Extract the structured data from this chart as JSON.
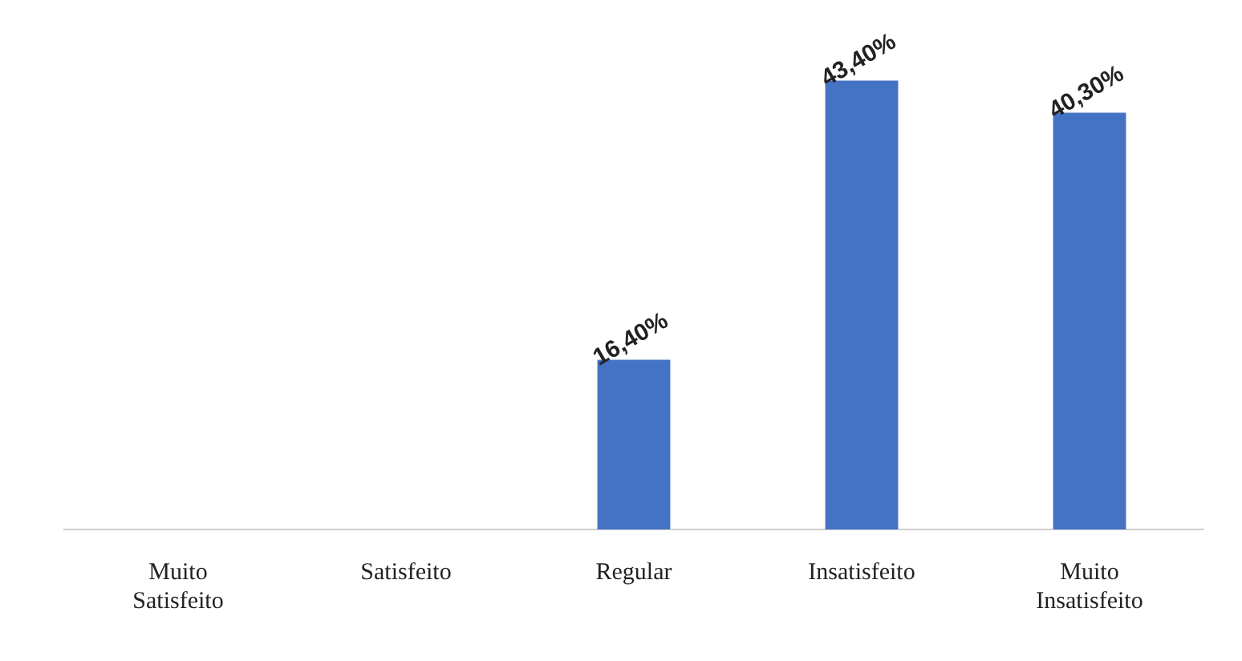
{
  "chart_data": {
    "type": "bar",
    "categories": [
      "Muito Satisfeito",
      "Satisfeito",
      "Regular",
      "Insatisfeito",
      "Muito Insatisfeito"
    ],
    "values": [
      null,
      null,
      16.4,
      43.4,
      40.3
    ],
    "color": "#4472c4",
    "value_labels": [
      null,
      null,
      "16,40%",
      "43,40%",
      "40,30%"
    ],
    "grid": false,
    "legend": false
  }
}
